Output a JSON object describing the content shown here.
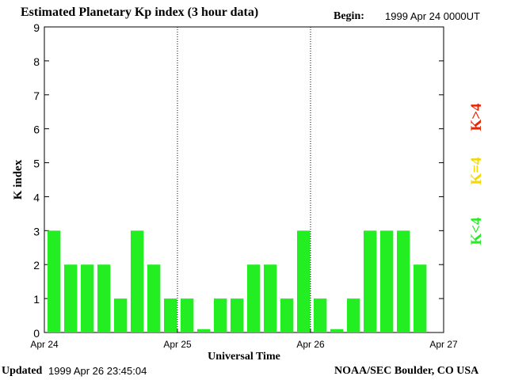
{
  "chart_data": {
    "type": "bar",
    "title": "Estimated Planetary Kp index (3 hour data)",
    "begin_label": "Begin:",
    "begin_value": "1999 Apr 24 0000UT",
    "xlabel": "Universal Time",
    "ylabel": "K index",
    "ylim": [
      0,
      9
    ],
    "yticks": [
      "0",
      "1",
      "2",
      "3",
      "4",
      "5",
      "6",
      "7",
      "8",
      "9"
    ],
    "xticks": [
      "Apr 24",
      "Apr 25",
      "Apr 26",
      "Apr 27"
    ],
    "values": [
      3,
      2,
      2,
      2,
      1,
      3,
      2,
      1,
      1,
      0.1,
      1,
      1,
      2,
      2,
      1,
      3,
      1,
      0.1,
      1,
      3,
      3,
      3,
      2
    ],
    "bar_color": "#22ee22",
    "legend": [
      {
        "label": "K<4",
        "color": "#22ee22"
      },
      {
        "label": "K=4",
        "color": "#f5d800"
      },
      {
        "label": "K>4",
        "color": "#ee2200"
      }
    ]
  },
  "footer": {
    "updated_label": "Updated",
    "updated_value": "1999 Apr 26 23:45:04",
    "source": "NOAA/SEC Boulder, CO USA"
  }
}
